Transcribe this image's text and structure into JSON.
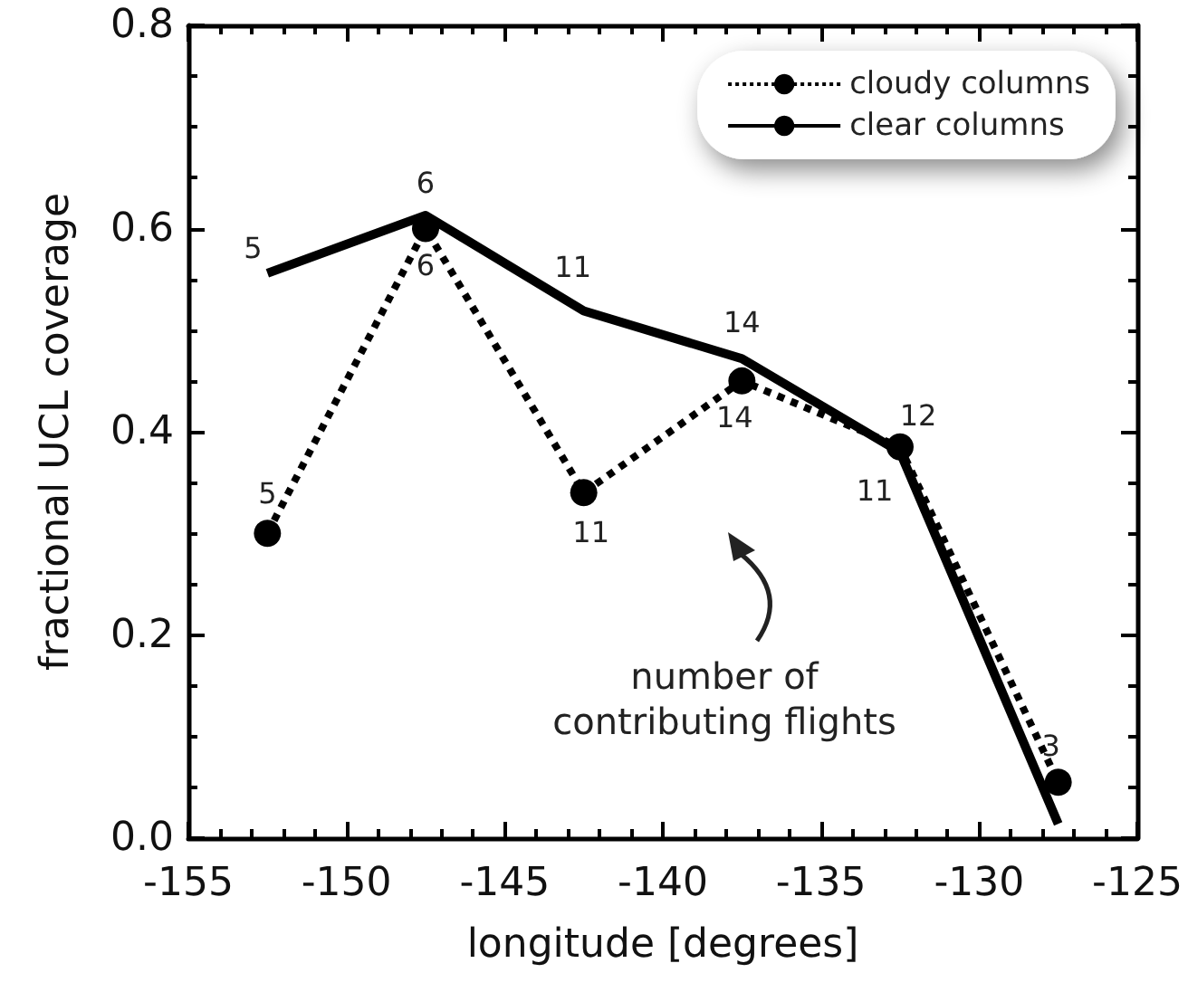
{
  "chart_data": {
    "type": "line",
    "xlabel": "longitude [degrees]",
    "ylabel": "fractional UCL coverage",
    "x": [
      -152.5,
      -147.5,
      -142.5,
      -137.5,
      -132.5,
      -127.5
    ],
    "series": [
      {
        "name": "cloudy columns",
        "color": "#000000",
        "marker": "circle",
        "line_style": "dotted",
        "values": [
          0.3,
          0.6,
          0.34,
          0.45,
          0.385,
          0.055
        ]
      },
      {
        "name": "clear columns",
        "color": "#000000",
        "marker": "none",
        "line_style": "solid",
        "values": [
          0.556,
          0.613,
          0.519,
          0.472,
          0.38,
          0.014
        ]
      }
    ],
    "xlim": [
      -155,
      -125
    ],
    "xticks": [
      -155,
      -150,
      -145,
      -140,
      -135,
      -130,
      -125
    ],
    "ylim": [
      0,
      0.8
    ],
    "yticks": [
      {
        "value": 0,
        "label": "0.0"
      },
      0.2,
      0.4,
      0.6,
      0.8
    ],
    "legend": "top right",
    "grid": false,
    "annotations": [
      "number of\ncontributing flights",
      {
        "text": "5",
        "x": -152.5,
        "y": 0.3
      },
      {
        "text": "6",
        "x": -147.5,
        "y": 0.6
      },
      {
        "text": "11",
        "x": -142.5,
        "y": 0.34
      },
      {
        "text": "14",
        "x": -137.5,
        "y": 0.45
      },
      {
        "text": "11",
        "x": -132.5,
        "y": 0.385
      },
      {
        "text": "3",
        "x": -127.5,
        "y": 0.055
      },
      {
        "text": "5",
        "x": -152.5,
        "y": 0.556
      },
      {
        "text": "6",
        "x": -147.5,
        "y": 0.613
      },
      {
        "text": "11",
        "x": -142.5,
        "y": 0.519
      },
      {
        "text": "14",
        "x": -137.5,
        "y": 0.472
      },
      {
        "text": "12",
        "x": -132.5,
        "y": 0.38
      }
    ]
  }
}
